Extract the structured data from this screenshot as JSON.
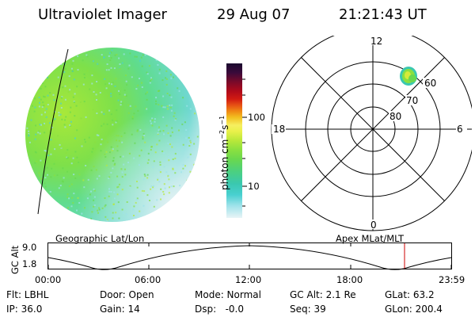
{
  "header": {
    "instrument": "Ultraviolet Imager",
    "date": "29 Aug 07",
    "time": "21:21:43 UT"
  },
  "colorbar": {
    "label_main": "photon cm",
    "label_sup1": "−2",
    "label_mid": "s",
    "label_sup2": "−1",
    "ticks": [
      "100",
      "10"
    ]
  },
  "polar_plot": {
    "mlt_labels": [
      "12",
      "6",
      "0",
      "18"
    ],
    "lat_labels": [
      "60",
      "70",
      "80"
    ]
  },
  "timeline": {
    "title_left": "Geographic Lat/Lon",
    "title_right": "Apex MLat/MLT",
    "y_axis_label": "GC Alt",
    "y_max": "9.0",
    "y_min": "1.8",
    "time_ticks": [
      "00:00",
      "06:00",
      "12:00",
      "18:00",
      "23:59"
    ]
  },
  "status": {
    "flt": "Flt: LBHL",
    "door": "Door: Open",
    "mode": "Mode: Normal",
    "gc_alt": "GC Alt: 2.1 Re",
    "glat": "GLat: 63.2",
    "ip": "IP: 36.0",
    "gain": "Gain: 14",
    "dsp": "Dsp:   -0.0",
    "seq": "Seq: 39",
    "glon": "GLon: 200.4"
  },
  "colors": {
    "cursor": "#cc0000"
  }
}
